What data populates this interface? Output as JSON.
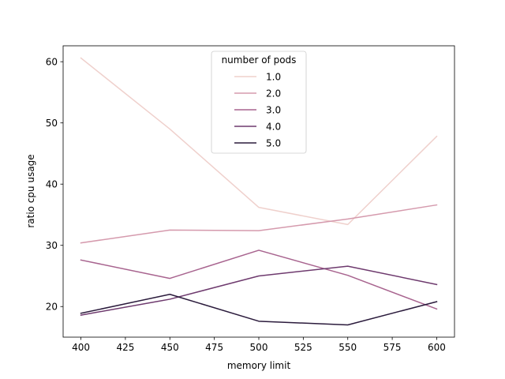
{
  "chart_data": {
    "type": "line",
    "title": "",
    "xlabel": "memory limit",
    "ylabel": "ratio cpu usage",
    "x": [
      400,
      450,
      500,
      550,
      600
    ],
    "xticks": [
      400,
      425,
      450,
      475,
      500,
      525,
      550,
      575,
      600
    ],
    "yticks": [
      20,
      30,
      40,
      50,
      60
    ],
    "xlim": [
      390,
      610
    ],
    "ylim": [
      15,
      62.6
    ],
    "grid": false,
    "legend": {
      "title": "number of pods",
      "placement": "upper center"
    },
    "series": [
      {
        "name": "1.0",
        "color": "#efd0cc",
        "values": [
          60.6,
          49.0,
          36.2,
          33.4,
          47.8
        ]
      },
      {
        "name": "2.0",
        "color": "#d59aad",
        "values": [
          30.4,
          32.5,
          32.4,
          34.3,
          36.6
        ]
      },
      {
        "name": "3.0",
        "color": "#a8648f",
        "values": [
          27.6,
          24.6,
          29.2,
          25.1,
          19.6
        ]
      },
      {
        "name": "4.0",
        "color": "#6e3a6e",
        "values": [
          18.6,
          21.2,
          25.0,
          26.6,
          23.6
        ]
      },
      {
        "name": "5.0",
        "color": "#2b1b3c",
        "values": [
          18.9,
          22.0,
          17.6,
          17.0,
          20.8
        ]
      }
    ]
  }
}
